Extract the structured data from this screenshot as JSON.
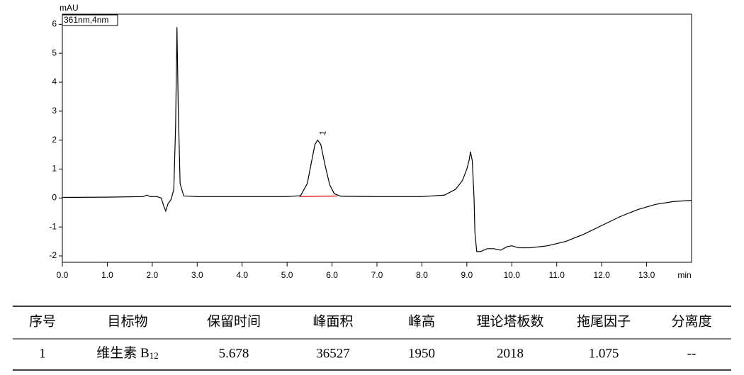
{
  "chart_data": {
    "type": "line",
    "y_label": "mAU",
    "x_label": "min",
    "annotation": "361nm,4nm",
    "color": "#000000",
    "x": [
      0,
      1.0,
      1.8,
      1.88,
      1.95,
      2.1,
      2.2,
      2.25,
      2.3,
      2.35,
      2.42,
      2.48,
      2.52,
      2.55,
      2.58,
      2.62,
      2.7,
      3.0,
      4.0,
      5.0,
      5.3,
      5.45,
      5.55,
      5.62,
      5.68,
      5.75,
      5.85,
      5.95,
      6.05,
      6.2,
      7.0,
      8.0,
      8.5,
      8.75,
      8.9,
      9.0,
      9.05,
      9.08,
      9.12,
      9.16,
      9.18,
      9.22,
      9.3,
      9.45,
      9.6,
      9.75,
      9.9,
      10.0,
      10.15,
      10.4,
      10.8,
      11.2,
      11.6,
      12.0,
      12.4,
      12.8,
      13.2,
      13.6,
      14.0
    ],
    "values": [
      0.02,
      0.03,
      0.05,
      0.1,
      0.05,
      0.05,
      0.0,
      -0.25,
      -0.45,
      -0.2,
      -0.05,
      0.3,
      2.5,
      5.9,
      3.0,
      0.5,
      0.07,
      0.05,
      0.05,
      0.05,
      0.08,
      0.5,
      1.3,
      1.85,
      2.0,
      1.85,
      1.1,
      0.45,
      0.15,
      0.06,
      0.05,
      0.05,
      0.1,
      0.3,
      0.6,
      1.0,
      1.3,
      1.6,
      1.3,
      0,
      -1.2,
      -1.85,
      -1.85,
      -1.75,
      -1.75,
      -1.8,
      -1.68,
      -1.65,
      -1.72,
      -1.72,
      -1.65,
      -1.5,
      -1.25,
      -0.95,
      -0.65,
      -0.4,
      -0.22,
      -0.12,
      -0.08
    ],
    "baseline": {
      "x": [
        5.28,
        6.12
      ],
      "values": [
        0.05,
        0.07
      ],
      "color": "#e00000"
    },
    "peaks": [
      {
        "label": "1",
        "x": 5.68,
        "value": 2.0
      }
    ],
    "xlim": [
      0,
      14
    ],
    "ylim": [
      -2.22,
      6.35
    ],
    "xticks": [
      {
        "value": 0,
        "label": "0.0"
      },
      {
        "value": 1,
        "label": "1.0"
      },
      {
        "value": 2,
        "label": "2.0"
      },
      {
        "value": 3,
        "label": "3.0"
      },
      {
        "value": 4,
        "label": "4.0"
      },
      {
        "value": 5,
        "label": "5.0"
      },
      {
        "value": 6,
        "label": "6.0"
      },
      {
        "value": 7,
        "label": "7.0"
      },
      {
        "value": 8,
        "label": "8.0"
      },
      {
        "value": 9,
        "label": "9.0"
      },
      {
        "value": 10,
        "label": "10.0"
      },
      {
        "value": 11,
        "label": "11.0"
      },
      {
        "value": 12,
        "label": "12.0"
      },
      {
        "value": 13,
        "label": "13.0"
      }
    ],
    "yticks": [
      -2,
      -1,
      0,
      1,
      2,
      3,
      4,
      5,
      6
    ]
  },
  "table": {
    "header": [
      "序号",
      "目标物",
      "保留时间",
      "峰面积",
      "峰高",
      "理论塔板数",
      "拖尾因子",
      "分离度"
    ],
    "rows": [
      [
        "1",
        {
          "text": "维生素 B",
          "sub": "12"
        },
        "5.678",
        "36527",
        "1950",
        "2018",
        "1.075",
        "--"
      ]
    ]
  }
}
